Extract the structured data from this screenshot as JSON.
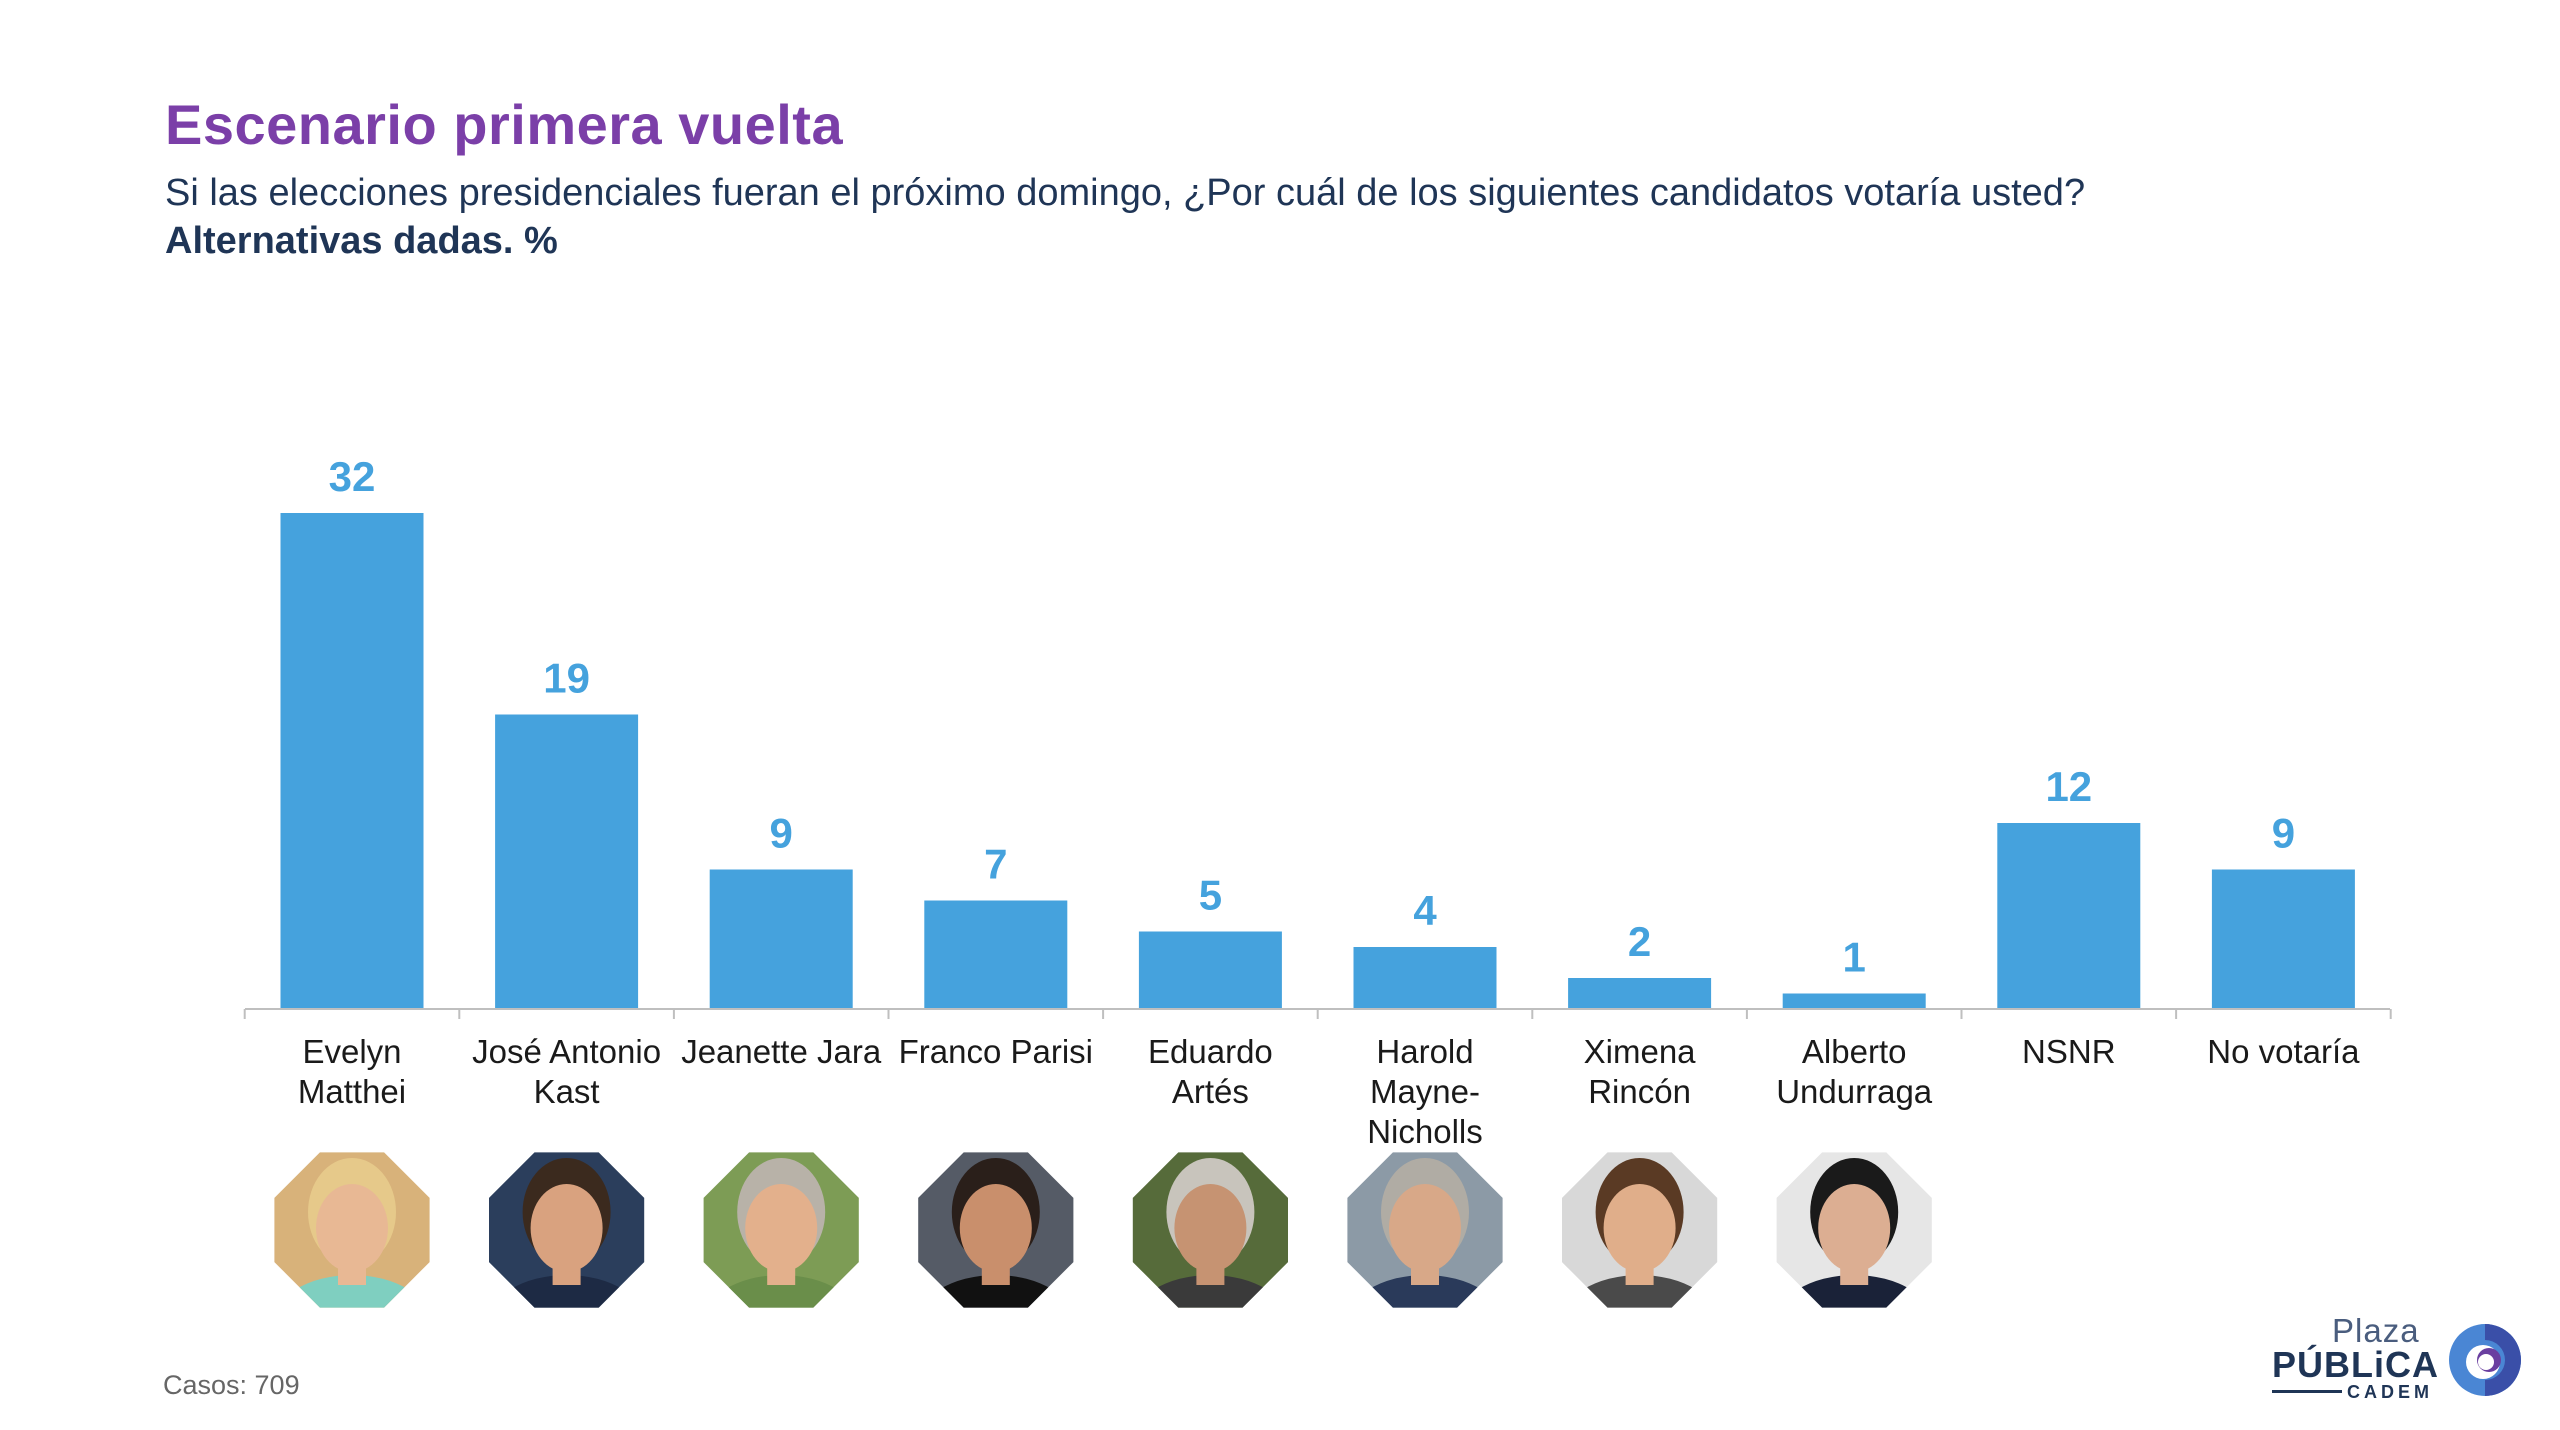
{
  "header": {
    "title": "Escenario primera vuelta",
    "subtitle": "Si las elecciones presidenciales fueran el próximo domingo, ¿Por cuál de los siguientes candidatos votaría usted?",
    "subtitle2": "Alternativas dadas. %"
  },
  "footer": {
    "cases": "Casos: 709"
  },
  "logo": {
    "line1": "Plaza",
    "line2": "PÚBLiCA",
    "line3": "CADEM"
  },
  "colors": {
    "title": "#7b3fa8",
    "bar": "#45a2dd",
    "text": "#1f3556"
  },
  "chart_data": {
    "type": "bar",
    "title": "Escenario primera vuelta",
    "xlabel": "",
    "ylabel": "",
    "ylim": [
      0,
      32
    ],
    "grid": false,
    "legend": "none",
    "categories": [
      [
        "Evelyn",
        "Matthei"
      ],
      [
        "José Antonio",
        "Kast"
      ],
      [
        "Jeanette Jara"
      ],
      [
        "Franco Parisi"
      ],
      [
        "Eduardo",
        "Artés"
      ],
      [
        "Harold",
        "Mayne-",
        "Nicholls"
      ],
      [
        "Ximena",
        "Rincón"
      ],
      [
        "Alberto",
        "Undurraga"
      ],
      [
        "NSNR"
      ],
      [
        "No votaría"
      ]
    ],
    "values": [
      32,
      19,
      9,
      7,
      5,
      4,
      2,
      1,
      12,
      9
    ],
    "photos": [
      true,
      true,
      true,
      true,
      true,
      true,
      true,
      true,
      false,
      false
    ]
  }
}
